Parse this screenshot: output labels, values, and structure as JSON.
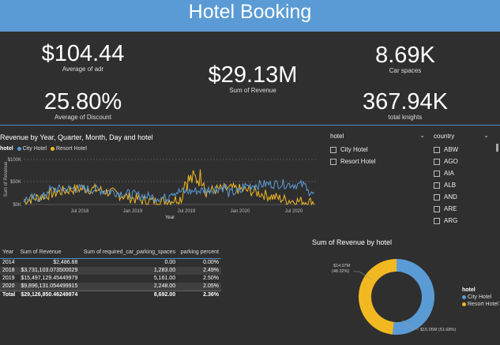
{
  "header": {
    "title": "Hotel Booking"
  },
  "kpis": {
    "adr": {
      "value": "$104.44",
      "label": "Average of adr"
    },
    "revenue": {
      "value": "$29.13M",
      "label": "Sum of Revenue"
    },
    "car_spaces": {
      "value": "8.69K",
      "label": "Car spaces"
    },
    "discount": {
      "value": "25.80%",
      "label": "Average of Discount"
    },
    "knights": {
      "value": "367.94K",
      "label": "total knights"
    }
  },
  "colors": {
    "city": "#5b9bd5",
    "resort": "#f2b822",
    "accent": "#4a8cc8"
  },
  "line_chart": {
    "title": "Revenue by Year, Quarter, Month, Day and hotel",
    "legend_label": "hotel",
    "series_names": [
      "City Hotel",
      "Resort Hotel"
    ],
    "y_ticks": [
      "$100K",
      "$50K",
      "$0K"
    ],
    "y_label": "Sum of Revenue",
    "x_ticks": [
      "Jul 2018",
      "Jan 2019",
      "Jul 2019",
      "Jan 2020",
      "Jul 2020"
    ],
    "x_label": "Year"
  },
  "hotel_slicer": {
    "title": "hotel",
    "items": [
      "City Hotel",
      "Resort Hotel"
    ]
  },
  "country_slicer": {
    "title": "country",
    "items": [
      "ABW",
      "AGO",
      "AIA",
      "ALB",
      "AND",
      "ARE",
      "ARG"
    ]
  },
  "table": {
    "headers": [
      "Year",
      "Sum of Revenue",
      "Sum of required_car_parking_spaces",
      "parking percent"
    ],
    "rows": [
      [
        "2014",
        "$2,486.88",
        "0.00",
        "0.00%"
      ],
      [
        "2018",
        "$3,731,103.073500029",
        "1,283.00",
        "2.49%"
      ],
      [
        "2019",
        "$15,497,129.45449979",
        "5,161.00",
        "2.50%"
      ],
      [
        "2020",
        "$9,896,131.054499915",
        "2,248.00",
        "2.05%"
      ]
    ],
    "total": [
      "Total",
      "$29,126,850.46249974",
      "8,692.00",
      "2.36%"
    ]
  },
  "donut": {
    "title": "Sum of Revenue by hotel",
    "resort_label": "$14.07M",
    "resort_pct": "(48.32%)",
    "city_label": "$15.05M (51.68%)",
    "legend_title": "hotel",
    "legend_items": [
      "City Hotel",
      "Resort Hotel"
    ]
  },
  "chart_data": {
    "type": "pie",
    "title": "Sum of Revenue by hotel",
    "categories": [
      "City Hotel",
      "Resort Hotel"
    ],
    "values": [
      15.05,
      14.07
    ],
    "unit": "$M"
  }
}
